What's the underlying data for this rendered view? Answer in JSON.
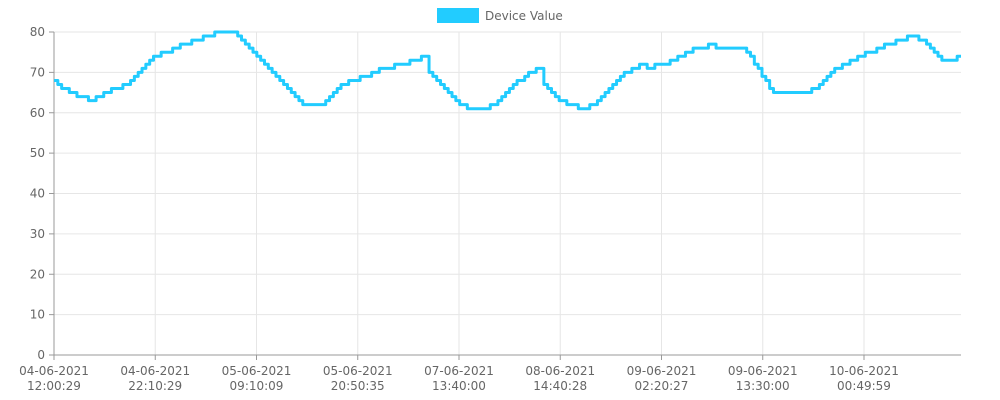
{
  "chart_data": {
    "type": "line",
    "title": "",
    "xlabel": "",
    "ylabel": "",
    "ylim": [
      0,
      80
    ],
    "y_ticks": [
      0,
      10,
      20,
      30,
      40,
      50,
      60,
      70,
      80
    ],
    "x_ticks": [
      {
        "date": "04-06-2021",
        "time": "12:00:29"
      },
      {
        "date": "04-06-2021",
        "time": "22:10:29"
      },
      {
        "date": "05-06-2021",
        "time": "09:10:09"
      },
      {
        "date": "05-06-2021",
        "time": "20:50:35"
      },
      {
        "date": "07-06-2021",
        "time": "13:40:00"
      },
      {
        "date": "08-06-2021",
        "time": "14:40:28"
      },
      {
        "date": "09-06-2021",
        "time": "02:20:27"
      },
      {
        "date": "09-06-2021",
        "time": "13:30:00"
      },
      {
        "date": "10-06-2021",
        "time": "00:49:59"
      }
    ],
    "grid": true,
    "legend_position": "top",
    "series": [
      {
        "name": "Device Value",
        "color": "#22ccff",
        "values": [
          68,
          67,
          66,
          66,
          65,
          65,
          64,
          64,
          64,
          63,
          63,
          64,
          64,
          65,
          65,
          66,
          66,
          66,
          67,
          67,
          68,
          69,
          70,
          71,
          72,
          73,
          74,
          74,
          75,
          75,
          75,
          76,
          76,
          77,
          77,
          77,
          78,
          78,
          78,
          79,
          79,
          79,
          80,
          80,
          80,
          80,
          80,
          80,
          79,
          78,
          77,
          76,
          75,
          74,
          73,
          72,
          71,
          70,
          69,
          68,
          67,
          66,
          65,
          64,
          63,
          62,
          62,
          62,
          62,
          62,
          62,
          63,
          64,
          65,
          66,
          67,
          67,
          68,
          68,
          68,
          69,
          69,
          69,
          70,
          70,
          71,
          71,
          71,
          71,
          72,
          72,
          72,
          72,
          73,
          73,
          73,
          74,
          74,
          70,
          69,
          68,
          67,
          66,
          65,
          64,
          63,
          62,
          62,
          61,
          61,
          61,
          61,
          61,
          61,
          62,
          62,
          63,
          64,
          65,
          66,
          67,
          68,
          68,
          69,
          70,
          70,
          71,
          71,
          67,
          66,
          65,
          64,
          63,
          63,
          62,
          62,
          62,
          61,
          61,
          61,
          62,
          62,
          63,
          64,
          65,
          66,
          67,
          68,
          69,
          70,
          70,
          71,
          71,
          72,
          72,
          71,
          71,
          72,
          72,
          72,
          72,
          73,
          73,
          74,
          74,
          75,
          75,
          76,
          76,
          76,
          76,
          77,
          77,
          76,
          76,
          76,
          76,
          76,
          76,
          76,
          76,
          75,
          74,
          72,
          71,
          69,
          68,
          66,
          65,
          65,
          65,
          65,
          65,
          65,
          65,
          65,
          65,
          65,
          66,
          66,
          67,
          68,
          69,
          70,
          71,
          71,
          72,
          72,
          73,
          73,
          74,
          74,
          75,
          75,
          75,
          76,
          76,
          77,
          77,
          77,
          78,
          78,
          78,
          79,
          79,
          79,
          78,
          78,
          77,
          76,
          75,
          74,
          73,
          73,
          73,
          73,
          74,
          74
        ]
      }
    ]
  }
}
